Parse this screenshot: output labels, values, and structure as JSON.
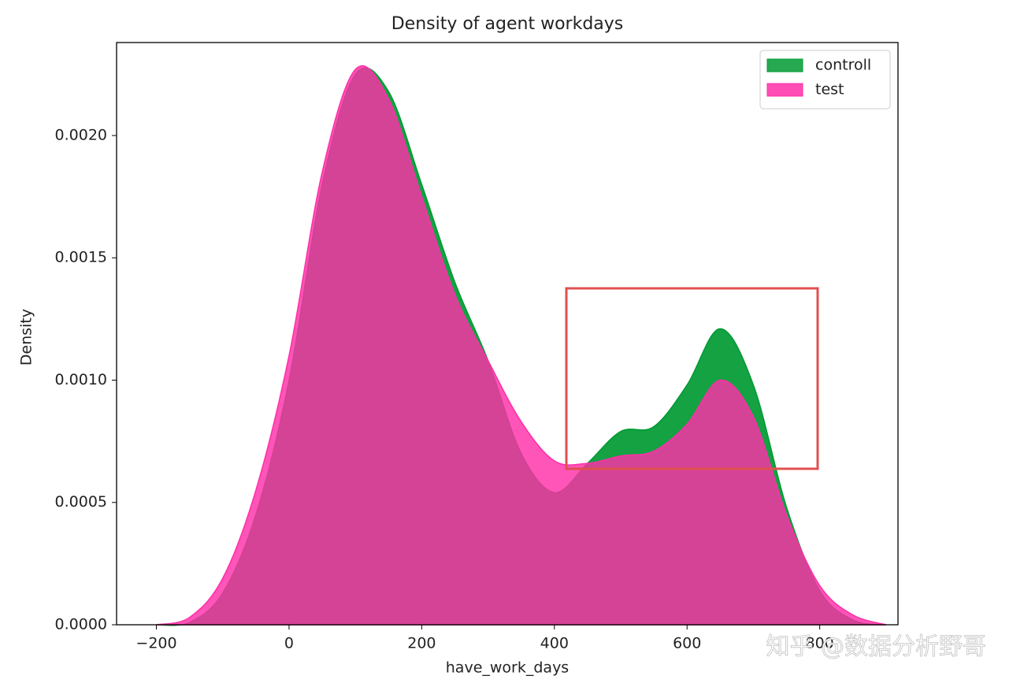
{
  "chart_data": {
    "type": "area",
    "title": "Density  of agent workdays",
    "x_label": "have_work_days",
    "y_label": "Density",
    "watermark": "知乎 @数据分析野哥",
    "x": [
      -200,
      -150,
      -100,
      -50,
      0,
      50,
      100,
      150,
      200,
      250,
      300,
      350,
      400,
      450,
      500,
      550,
      600,
      650,
      700,
      750,
      800,
      850,
      900
    ],
    "series": [
      {
        "name": "controll",
        "color": "#009a33",
        "values": [
          0.0,
          1e-05,
          0.00013,
          0.00045,
          0.001,
          0.0018,
          0.00225,
          0.00218,
          0.0018,
          0.0014,
          0.00108,
          0.0007,
          0.00054,
          0.00066,
          0.00079,
          0.00081,
          0.00098,
          0.00121,
          0.00098,
          0.00048,
          0.00014,
          2e-05,
          0.0
        ]
      },
      {
        "name": "test",
        "color": "#ff2ea8",
        "values": [
          0.0,
          3e-05,
          0.00019,
          0.00055,
          0.0011,
          0.00185,
          0.00227,
          0.00215,
          0.00175,
          0.00135,
          0.00108,
          0.00083,
          0.00067,
          0.00066,
          0.00069,
          0.00071,
          0.00082,
          0.001,
          0.00085,
          0.00045,
          0.00016,
          4e-05,
          0.0
        ]
      }
    ],
    "xlim": [
      -260,
      918
    ],
    "ylim": [
      0,
      0.00238
    ],
    "xticks": [
      {
        "value": -200,
        "label": "−200"
      },
      0,
      200,
      400,
      600,
      800
    ],
    "yticks": [
      {
        "value": 0,
        "label": "0.0000"
      },
      {
        "value": 0.0005,
        "label": "0.0005"
      },
      {
        "value": 0.001,
        "label": "0.0010"
      },
      {
        "value": 0.0015,
        "label": "0.0015"
      },
      {
        "value": 0.002,
        "label": "0.0020"
      }
    ],
    "legend": "upper right"
  }
}
